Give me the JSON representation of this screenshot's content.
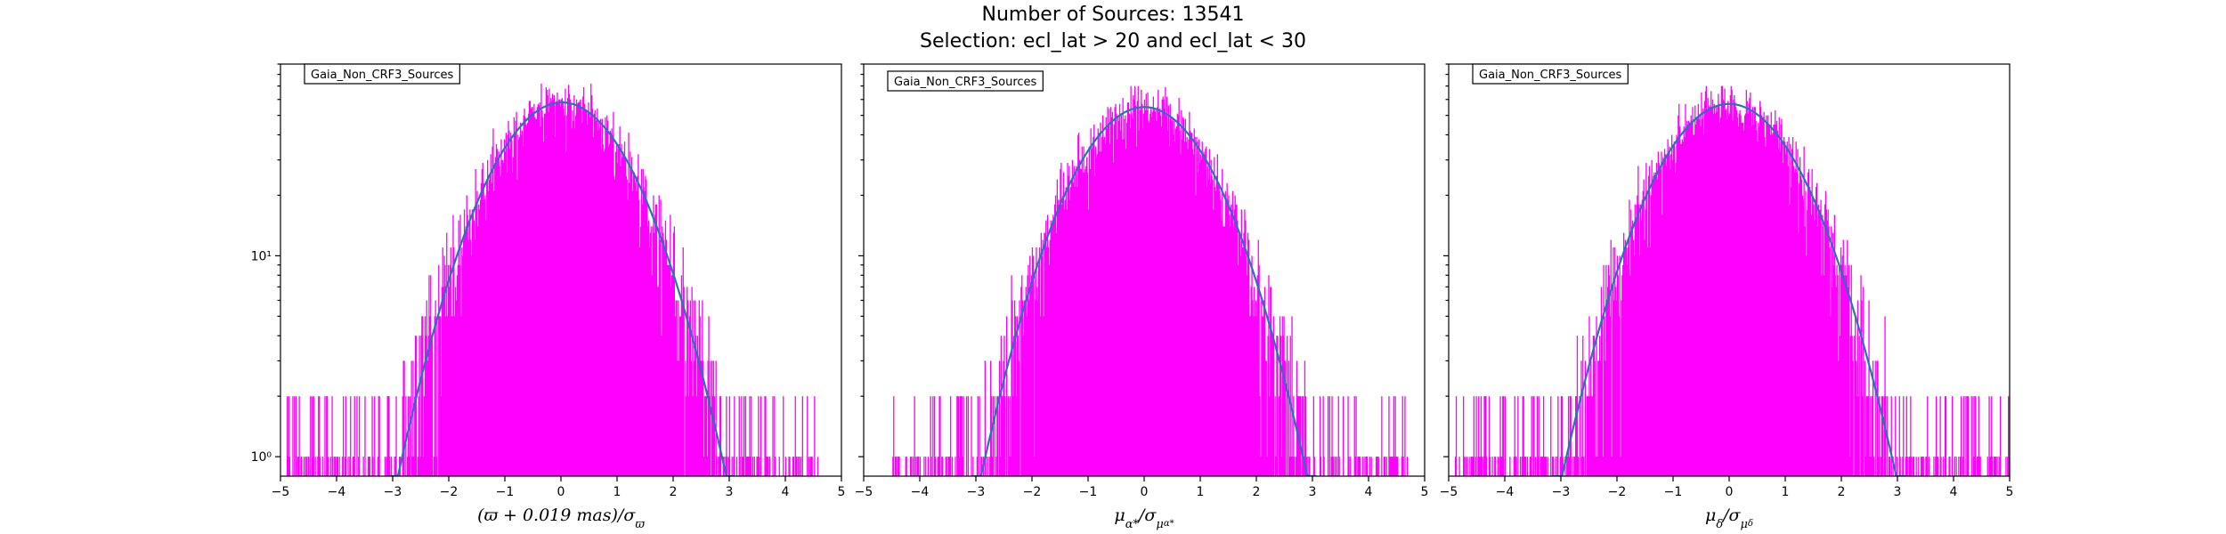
{
  "figure": {
    "title_line1": "Number of Sources: 13541",
    "title_line2": "Selection: ecl_lat > 20 and ecl_lat < 30"
  },
  "colors": {
    "histogram": "#ff00ff",
    "fit": "#1f77b4"
  },
  "chart_data": [
    {
      "type": "line",
      "legend": "Gaia_Non_CRF3_Sources",
      "legend_position": "top-left",
      "xlabel": "(ϖ + 0.019 mas)/σϖ",
      "xlim": [
        -5,
        5
      ],
      "xticks": [
        -5,
        -4,
        -3,
        -2,
        -1,
        0,
        1,
        2,
        3,
        4,
        5
      ],
      "yscale": "log",
      "ylim": [
        0.8,
        90
      ],
      "yticks": [
        {
          "value": 1,
          "label": "10⁰"
        },
        {
          "value": 10,
          "label": "10¹"
        }
      ],
      "fit": {
        "peak": 58,
        "mean": 0.02,
        "sigma": 1.0
      },
      "histogram_x_range": [
        -4.9,
        4.6
      ],
      "histogram_peak": 72
    },
    {
      "type": "line",
      "legend": "Gaia_Non_CRF3_Sources",
      "legend_position": "top-left",
      "xlabel": "μα*/σμα*",
      "xlim": [
        -5,
        5
      ],
      "xticks": [
        -5,
        -4,
        -3,
        -2,
        -1,
        0,
        1,
        2,
        3,
        4,
        5
      ],
      "yscale": "log",
      "ylim": [
        0.8,
        90
      ],
      "yticks": [
        {
          "value": 1,
          "label": "10⁰"
        },
        {
          "value": 10,
          "label": "10¹"
        }
      ],
      "fit": {
        "peak": 55,
        "mean": 0.0,
        "sigma": 1.0
      },
      "histogram_x_range": [
        -4.5,
        4.7
      ],
      "histogram_peak": 70
    },
    {
      "type": "line",
      "legend": "Gaia_Non_CRF3_Sources",
      "legend_position": "top-left",
      "xlabel": "μδ/σμδ",
      "xlim": [
        -5,
        5
      ],
      "xticks": [
        -5,
        -4,
        -3,
        -2,
        -1,
        0,
        1,
        2,
        3,
        4,
        5
      ],
      "yscale": "log",
      "ylim": [
        0.8,
        90
      ],
      "yticks": [
        {
          "value": 1,
          "label": "10⁰"
        },
        {
          "value": 10,
          "label": "10¹"
        }
      ],
      "fit": {
        "peak": 57,
        "mean": 0.0,
        "sigma": 1.02
      },
      "histogram_x_range": [
        -4.9,
        5.0
      ],
      "histogram_peak": 70
    }
  ]
}
